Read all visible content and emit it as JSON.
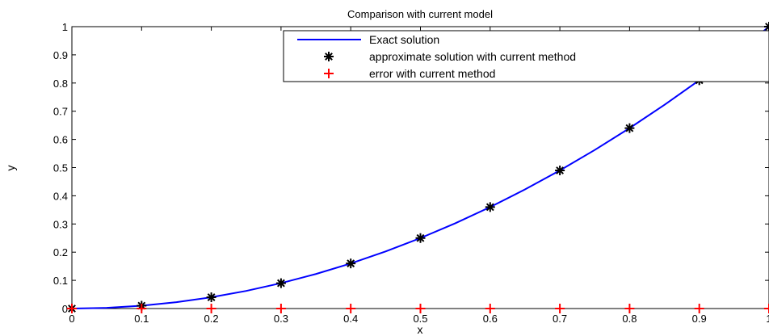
{
  "chart_data": {
    "type": "line",
    "title": "Comparison with current model",
    "xlabel": "x",
    "ylabel": "y",
    "xlim": [
      0,
      1
    ],
    "ylim": [
      0,
      1
    ],
    "x_ticks": [
      "0",
      "0.1",
      "0.2",
      "0.3",
      "0.4",
      "0.5",
      "0.6",
      "0.7",
      "0.8",
      "0.9",
      "1"
    ],
    "y_ticks": [
      "0",
      "0.1",
      "0.2",
      "0.3",
      "0.4",
      "0.5",
      "0.6",
      "0.7",
      "0.8",
      "0.9",
      "1"
    ],
    "grid": false,
    "legend_position": "top-right",
    "series": [
      {
        "name": "Exact solution",
        "style": "line",
        "color": "#0000ff",
        "x": [
          0,
          0.05,
          0.1,
          0.15,
          0.2,
          0.25,
          0.3,
          0.35,
          0.4,
          0.45,
          0.5,
          0.55,
          0.6,
          0.65,
          0.7,
          0.75,
          0.8,
          0.85,
          0.9,
          0.95,
          1.0
        ],
        "y": [
          0,
          0.0025,
          0.01,
          0.0225,
          0.04,
          0.0625,
          0.09,
          0.1225,
          0.16,
          0.2025,
          0.25,
          0.3025,
          0.36,
          0.4225,
          0.49,
          0.5625,
          0.64,
          0.7225,
          0.81,
          0.9025,
          1.0
        ]
      },
      {
        "name": "approximate solution with current method",
        "style": "markers",
        "marker": "asterisk",
        "color": "#000000",
        "x": [
          0,
          0.1,
          0.2,
          0.3,
          0.4,
          0.5,
          0.6,
          0.7,
          0.8,
          0.9,
          1.0
        ],
        "y": [
          0,
          0.01,
          0.04,
          0.09,
          0.16,
          0.25,
          0.36,
          0.49,
          0.64,
          0.81,
          1.0
        ]
      },
      {
        "name": "error with current method",
        "style": "markers",
        "marker": "plus",
        "color": "#ff0000",
        "x": [
          0,
          0.1,
          0.2,
          0.3,
          0.4,
          0.5,
          0.6,
          0.7,
          0.8,
          0.9,
          1.0
        ],
        "y": [
          0,
          0,
          0,
          0,
          0,
          0,
          0,
          0,
          0,
          0,
          0
        ]
      }
    ]
  }
}
